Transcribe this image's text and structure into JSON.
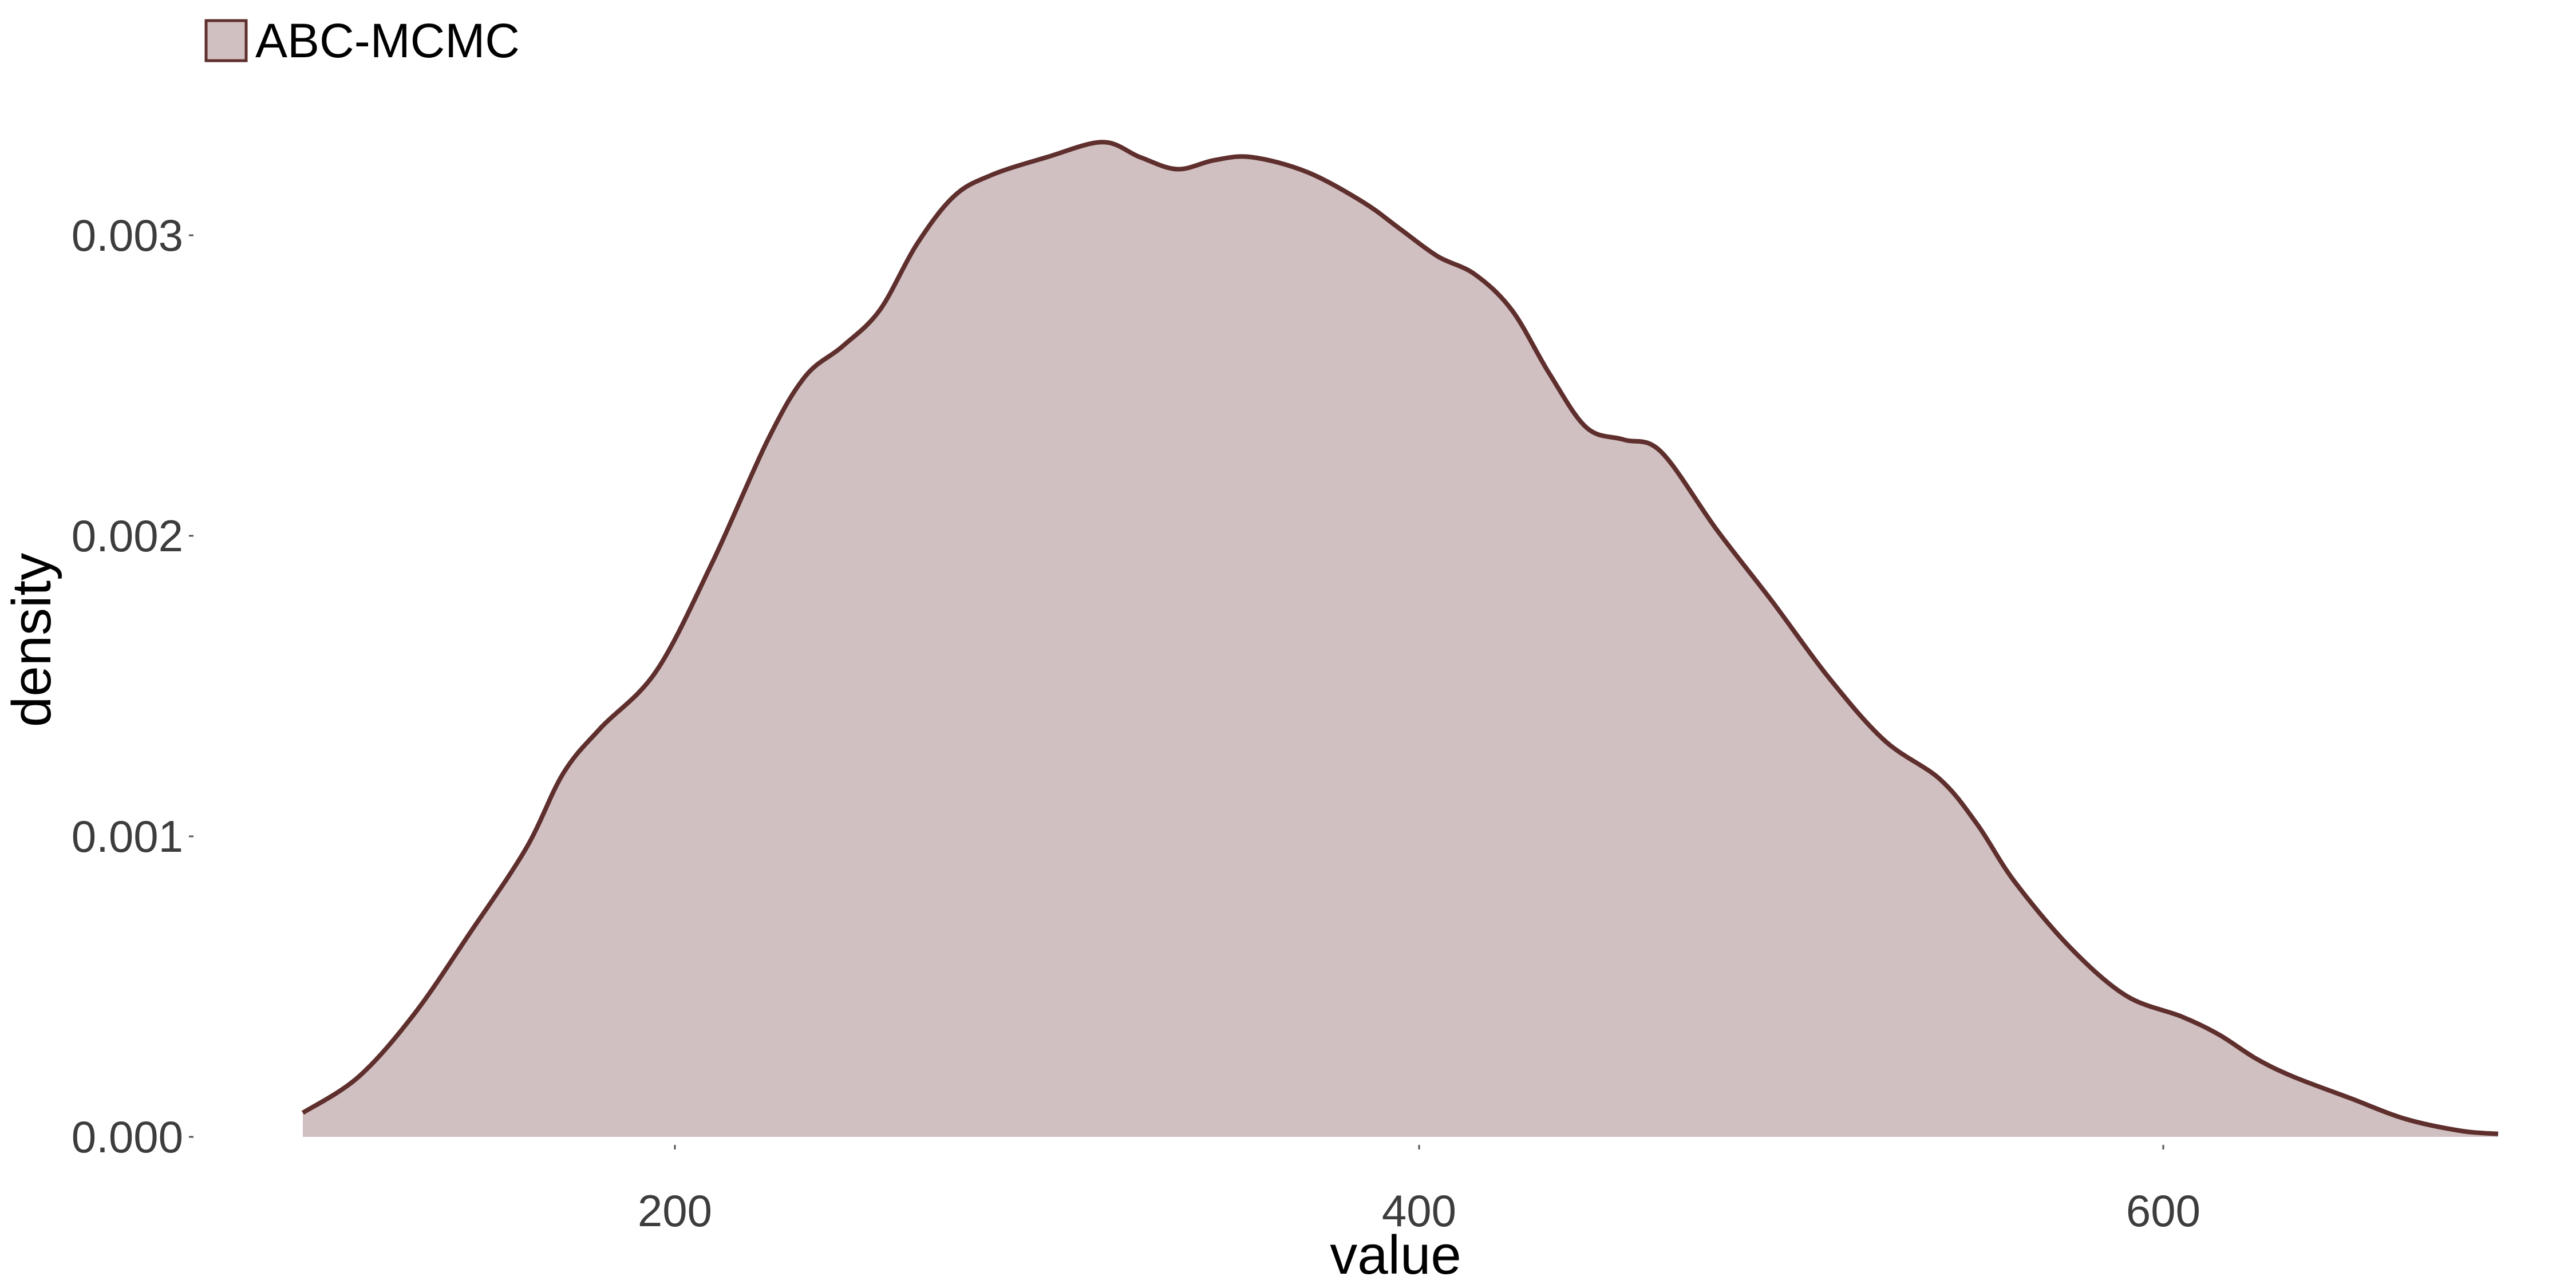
{
  "chart_data": {
    "type": "area",
    "title": "",
    "xlabel": "value",
    "ylabel": "density",
    "xlim": [
      50,
      700
    ],
    "ylim": [
      0,
      0.0035
    ],
    "grid": false,
    "x_ticks": [
      200,
      400,
      600
    ],
    "x_tick_labels": [
      "200",
      "400",
      "600"
    ],
    "y_ticks": [
      0,
      0.001,
      0.002,
      0.003
    ],
    "y_tick_labels": [
      "0.000",
      "0.001",
      "0.002",
      "0.003"
    ],
    "legend": {
      "position": "top-left",
      "entries": [
        "ABC-MCMC"
      ]
    },
    "series": [
      {
        "name": "ABC-MCMC",
        "fill_color": "#d1c0c1",
        "line_color": "#5e2f2d",
        "x": [
          100,
          115,
          130,
          145,
          160,
          170,
          180,
          195,
          210,
          225,
          235,
          245,
          255,
          265,
          275,
          285,
          300,
          315,
          325,
          335,
          345,
          355,
          370,
          385,
          395,
          405,
          415,
          425,
          435,
          445,
          455,
          465,
          480,
          495,
          510,
          525,
          540,
          550,
          560,
          575,
          590,
          605,
          615,
          625,
          635,
          650,
          665,
          680,
          690
        ],
        "y": [
          8e-05,
          0.0002,
          0.00041,
          0.00068,
          0.00096,
          0.00121,
          0.00136,
          0.00155,
          0.00191,
          0.00232,
          0.00253,
          0.00263,
          0.00275,
          0.00297,
          0.00313,
          0.0032,
          0.00326,
          0.00331,
          0.00326,
          0.00322,
          0.00325,
          0.00326,
          0.00321,
          0.00311,
          0.00302,
          0.00293,
          0.00287,
          0.00275,
          0.00254,
          0.00236,
          0.00232,
          0.00228,
          0.00202,
          0.00178,
          0.00153,
          0.00132,
          0.00119,
          0.00104,
          0.00085,
          0.00063,
          0.00047,
          0.0004,
          0.00034,
          0.00026,
          0.0002,
          0.00013,
          6e-05,
          2e-05,
          1e-05
        ]
      }
    ]
  }
}
